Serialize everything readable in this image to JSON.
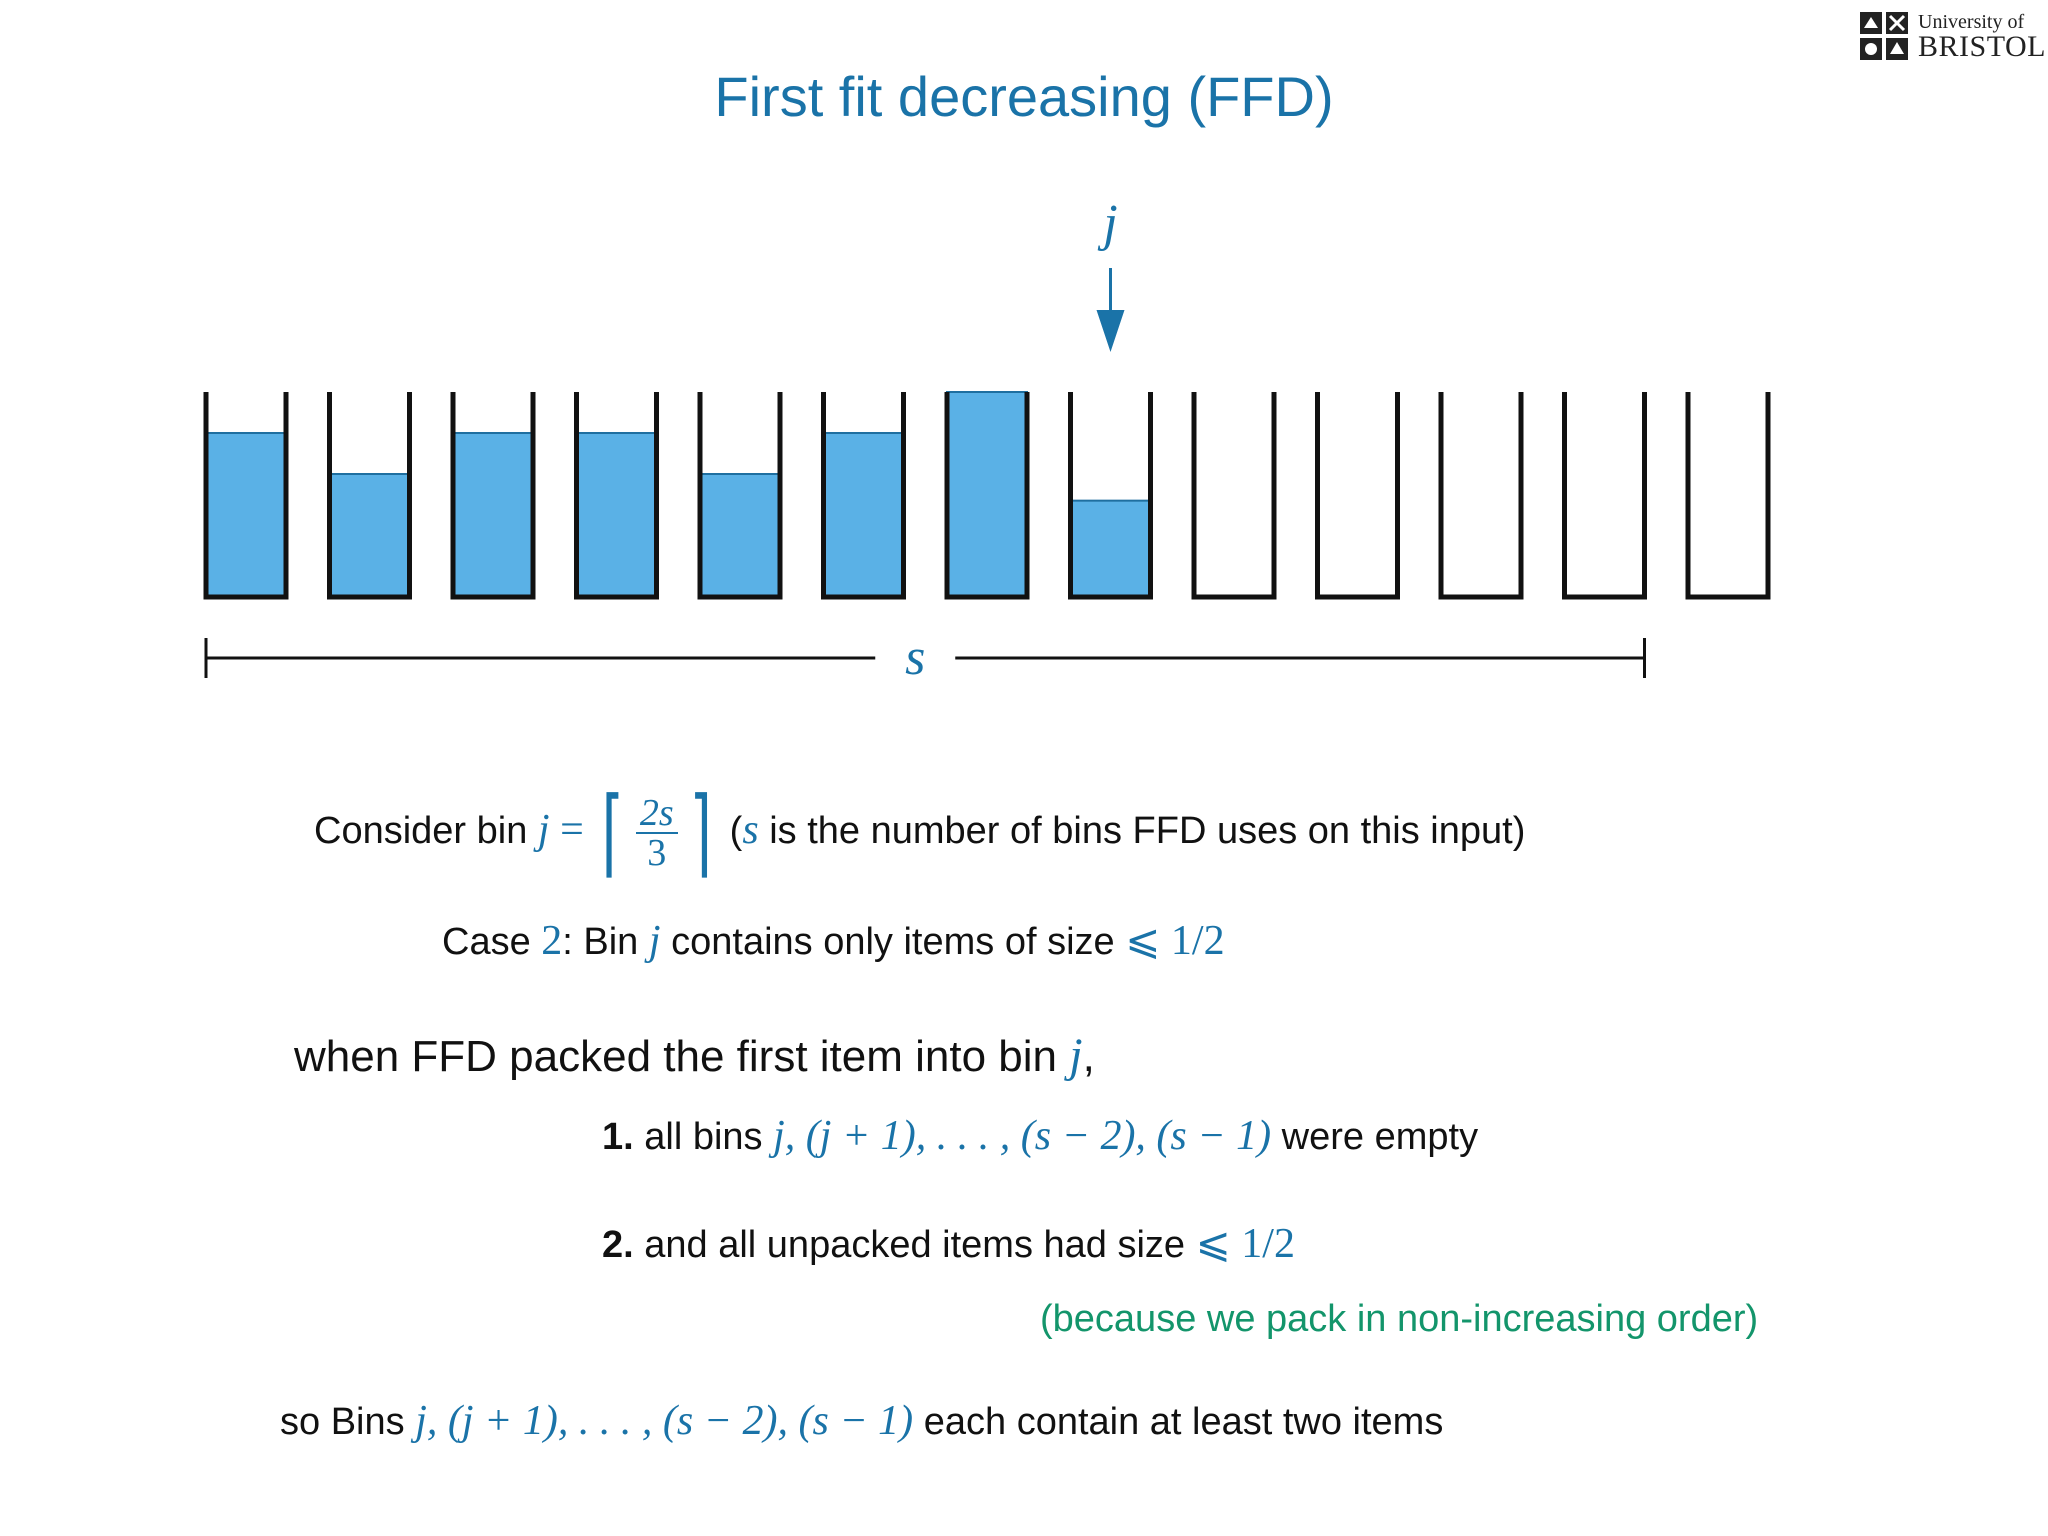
{
  "title": "First fit decreasing (FFD)",
  "logo": {
    "line1": "University of",
    "line2": "BRISTOL"
  },
  "diagram": {
    "pointer_label": "j",
    "pointer_bin_index": 7,
    "range_label": "s",
    "range_bins": 12,
    "fill_color": "#5ab1e6",
    "accent_color": "#1a73a8",
    "bin_fill_levels": [
      0.8,
      0.6,
      0.8,
      0.8,
      0.6,
      0.8,
      1.0,
      0.47,
      0,
      0,
      0,
      0,
      0
    ]
  },
  "line1": {
    "prefix": "Consider bin",
    "j": "j",
    "eq": "=",
    "num": "2s",
    "den": "3",
    "paren_open": "(",
    "s": "s",
    "rest": "is the number of bins FFD uses on this input)"
  },
  "line2": {
    "prefix": "Case",
    "n": "2",
    "colon": ": Bin",
    "j": "j",
    "rest": "contains only items of size",
    "bound": "⩽ 1/2"
  },
  "line3": {
    "text": "when FFD packed the first item into bin",
    "j": "j",
    "comma": ","
  },
  "item1": {
    "num": "1.",
    "text": "all bins",
    "math": "j, (j + 1), . . . , (s − 2), (s − 1)",
    "rest": "were empty"
  },
  "item2": {
    "num": "2.",
    "text": "and all unpacked items had size",
    "bound": "⩽ 1/2"
  },
  "note": "(because we pack in non-increasing order)",
  "line4": {
    "prefix": "so Bins",
    "math": "j, (j + 1), . . . , (s − 2), (s − 1)",
    "rest": "each contain at least two items"
  }
}
